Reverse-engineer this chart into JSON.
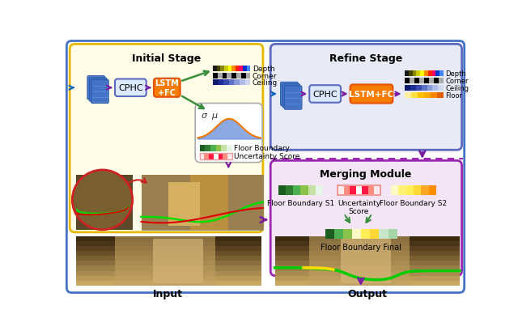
{
  "initial_stage_title": "Initial Stage",
  "refine_stage_title": "Refine Stage",
  "merging_module_title": "Merging Module",
  "input_label": "Input",
  "output_label": "Output",
  "cphc_label": "CPHC",
  "lstm_fc_label": "LSTM\n+FC",
  "lstm_fc2_label": "LSTM+FC",
  "depth_label": "Depth",
  "corner_label": "Corner",
  "ceiling_label": "Ceiling",
  "floor_label": "Floor",
  "floor_boundary_label": "Floor Boundary",
  "uncertainty_score_label": "Uncertainty Score",
  "floor_boundary_s1_label": "Floor Boundary S1",
  "uncertainty_score2_label": "Uncertainty\nScore",
  "floor_boundary_s2_label": "Floor Boundary S2",
  "floor_boundary_final_label": "Floor Boundary Final",
  "sigma_label": "σ",
  "mu_label": "μ",
  "bg_color": "#ffffff",
  "initial_stage_bg": "#fffde7",
  "initial_stage_border": "#e6b800",
  "refine_stage_bg": "#e8eaf6",
  "refine_stage_border": "#5c6bc0",
  "merging_module_bg": "#f3e5f5",
  "merging_module_border": "#9c27b0",
  "outer_border_color": "#4472c4",
  "cphc_bg": "#dce8fb",
  "cphc_border": "#5c6bc0",
  "lstm_fc_bg": "#f57c00",
  "lstm_fc_color": "#ffffff",
  "arrow_purple": "#7b1fa2",
  "arrow_green": "#388e3c",
  "arrow_blue": "#1565c0",
  "arrow_red": "#c62828",
  "depth_colors": [
    "#1a1a1a",
    "#444400",
    "#888800",
    "#cccc00",
    "#ffff00",
    "#ff8800",
    "#ff2200",
    "#ff0066",
    "#0033cc",
    "#4488ff"
  ],
  "corner_colors": [
    "#000000",
    "#aaaaaa",
    "#000000",
    "#aaaaaa",
    "#000000",
    "#aaaaaa",
    "#000000",
    "#aaaaaa"
  ],
  "ceiling_colors": [
    "#0d1b6e",
    "#1a2d99",
    "#3949ab",
    "#5c72c8",
    "#8899d9",
    "#b0bce8",
    "#d0d8f0"
  ],
  "floor_colors": [
    "#fff0a0",
    "#ffe040",
    "#ffc000",
    "#ffaa00",
    "#ff8800",
    "#e06000"
  ],
  "fb_green_colors": [
    "#1b5e20",
    "#2e7d32",
    "#4caf50",
    "#8bc34a",
    "#c5e1a5",
    "#e8f5e9"
  ],
  "unc_colors": [
    "#ffebee",
    "#ff8a80",
    "#ff1744",
    "#ffffff",
    "#ff1744",
    "#ff8a80",
    "#ffebee"
  ],
  "fb2_colors": [
    "#fff9c4",
    "#fff176",
    "#ffee58",
    "#fdd835",
    "#f9a825",
    "#ff8f00"
  ],
  "fb_final_colors": [
    "#1b5e20",
    "#4caf50",
    "#8bc34a",
    "#fff9c4",
    "#ffee58",
    "#fdd835",
    "#c8e6c9",
    "#a5d6a7"
  ]
}
